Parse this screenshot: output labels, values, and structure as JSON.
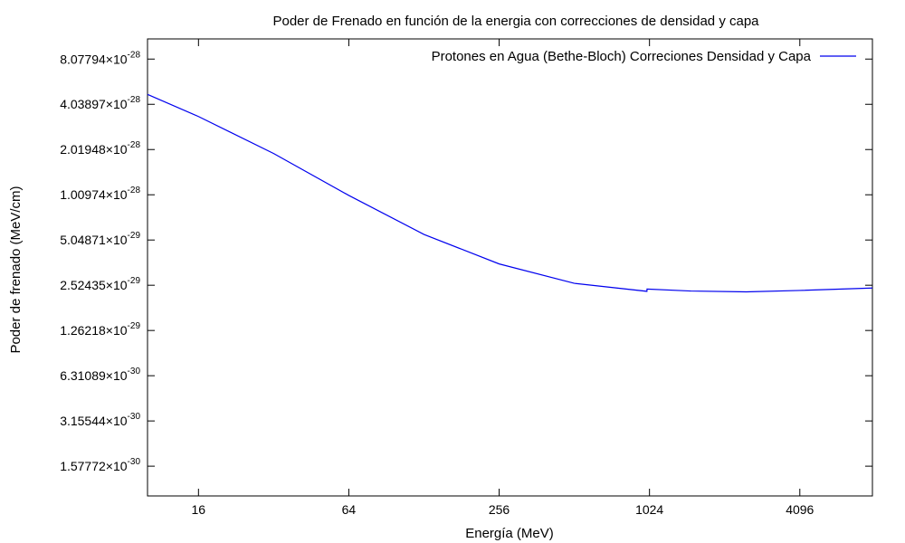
{
  "chart_data": {
    "type": "line",
    "title": "Poder de Frenado en función de la energia con correcciones de densidad y capa",
    "xlabel": "Energía (MeV)",
    "ylabel": "Poder de frenado (MeV/cm)",
    "x_scale": "log",
    "y_scale": "log",
    "xlim": [
      10,
      8000
    ],
    "ylim": [
      1e-30,
      1.1e-27
    ],
    "x_ticks": [
      {
        "value": 16,
        "label": "16"
      },
      {
        "value": 64,
        "label": "64"
      },
      {
        "value": 256,
        "label": "256"
      },
      {
        "value": 1024,
        "label": "1024"
      },
      {
        "value": 4096,
        "label": "4096"
      }
    ],
    "y_ticks": [
      {
        "value": 8.07794e-28,
        "mantissa": "8.07794×10",
        "exponent": "-28"
      },
      {
        "value": 4.03897e-28,
        "mantissa": "4.03897×10",
        "exponent": "-28"
      },
      {
        "value": 2.01948e-28,
        "mantissa": "2.01948×10",
        "exponent": "-28"
      },
      {
        "value": 1.00974e-28,
        "mantissa": "1.00974×10",
        "exponent": "-28"
      },
      {
        "value": 5.04871e-29,
        "mantissa": "5.04871×10",
        "exponent": "-29"
      },
      {
        "value": 2.52435e-29,
        "mantissa": "2.52435×10",
        "exponent": "-29"
      },
      {
        "value": 1.26218e-29,
        "mantissa": "1.26218×10",
        "exponent": "-29"
      },
      {
        "value": 6.31089e-30,
        "mantissa": "6.31089×10",
        "exponent": "-30"
      },
      {
        "value": 3.15544e-30,
        "mantissa": "3.15544×10",
        "exponent": "-30"
      },
      {
        "value": 1.57772e-30,
        "mantissa": "1.57772×10",
        "exponent": "-30"
      }
    ],
    "grid": false,
    "legend_position": "top-right",
    "series": [
      {
        "name": "Protones en Agua (Bethe-Bloch) Correciones Densidad y Capa",
        "color": "#0000ee",
        "points": [
          [
            10,
            4.7e-28
          ],
          [
            16,
            3.35e-28
          ],
          [
            32,
            1.9e-28
          ],
          [
            64,
            1e-28
          ],
          [
            128,
            5.5e-29
          ],
          [
            256,
            3.5e-29
          ],
          [
            512,
            2.6e-29
          ],
          [
            1000,
            2.3e-29
          ],
          [
            1001,
            2.38e-29
          ],
          [
            1500,
            2.31e-29
          ],
          [
            2500,
            2.28e-29
          ],
          [
            4096,
            2.33e-29
          ],
          [
            8000,
            2.42e-29
          ]
        ]
      }
    ]
  }
}
